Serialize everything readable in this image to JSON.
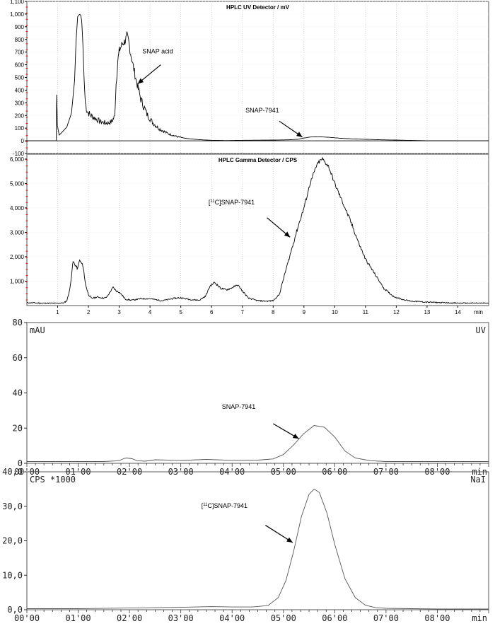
{
  "chart_data": [
    {
      "type": "line",
      "title": "HPLC UV Detector / mV",
      "xlim": [
        0,
        15
      ],
      "ylim": [
        -100,
        1100
      ],
      "x_ticks": [
        1,
        2,
        3,
        4,
        5,
        6,
        7,
        8,
        9,
        10,
        11,
        12,
        13,
        14
      ],
      "x_tick_labels": [],
      "y_ticks": [
        -100,
        0,
        100,
        200,
        300,
        400,
        500,
        600,
        700,
        800,
        900,
        1000,
        1100
      ],
      "y_tick_labels": [
        "-100",
        "0",
        "100",
        "200",
        "300",
        "400",
        "500",
        "600",
        "700",
        "800",
        "900",
        "1,000",
        "1,100"
      ],
      "x_unit": "",
      "grid": true,
      "series": [
        {
          "x": [
            0,
            0.95,
            0.97,
            0.99,
            1.05,
            1.15,
            1.3,
            1.45,
            1.55,
            1.6,
            1.65,
            1.7,
            1.72,
            1.75,
            1.78,
            1.82,
            1.86,
            1.9,
            1.95,
            2.05,
            2.2,
            2.4,
            2.6,
            2.75,
            2.85,
            2.9,
            2.95,
            3.0,
            3.1,
            3.2,
            3.25,
            3.3,
            3.4,
            3.55,
            3.7,
            3.9,
            4.1,
            4.3,
            4.6,
            4.9,
            5.2,
            5.6,
            6.0,
            6.5,
            7.0,
            7.5,
            8.0,
            8.5,
            8.8,
            9.0,
            9.2,
            9.5,
            9.8,
            10.2,
            10.6,
            11.0,
            11.5,
            12.0,
            12.5,
            13.0,
            14.0,
            15.0
          ],
          "y": [
            0,
            0,
            365,
            120,
            45,
            70,
            110,
            220,
            480,
            800,
            980,
            995,
            998,
            990,
            950,
            760,
            480,
            300,
            240,
            205,
            180,
            150,
            140,
            150,
            190,
            450,
            620,
            710,
            765,
            790,
            830,
            790,
            650,
            480,
            330,
            210,
            140,
            95,
            55,
            32,
            18,
            9,
            4,
            2,
            4,
            5,
            6,
            8,
            12,
            22,
            30,
            32,
            28,
            20,
            15,
            12,
            8,
            6,
            3,
            1,
            0,
            0
          ]
        }
      ],
      "annotations": [
        {
          "text": "SNAP acid"
        },
        {
          "text": "SNAP-7941"
        }
      ]
    },
    {
      "type": "line",
      "title": "HPLC Gamma Detector / CPS",
      "xlim": [
        0,
        15
      ],
      "ylim": [
        0,
        6200
      ],
      "x_ticks": [
        1,
        2,
        3,
        4,
        5,
        6,
        7,
        8,
        9,
        10,
        11,
        12,
        13,
        14
      ],
      "x_tick_labels": [
        "1",
        "2",
        "3",
        "4",
        "5",
        "6",
        "7",
        "8",
        "9",
        "10",
        "11",
        "12",
        "13",
        "14"
      ],
      "y_ticks": [
        1000,
        2000,
        3000,
        4000,
        5000,
        6000
      ],
      "y_tick_labels": [
        "1,000",
        "2,000",
        "3,000",
        "4,000",
        "5,000",
        "6,000"
      ],
      "x_unit": "min",
      "grid": true,
      "series": [
        {
          "x": [
            0,
            0.5,
            1.0,
            1.2,
            1.3,
            1.4,
            1.5,
            1.6,
            1.65,
            1.7,
            1.8,
            1.85,
            1.9,
            2.0,
            2.1,
            2.3,
            2.5,
            2.6,
            2.7,
            2.8,
            2.9,
            3.0,
            3.1,
            3.2,
            3.4,
            3.7,
            4.0,
            4.4,
            4.8,
            5.0,
            5.3,
            5.6,
            5.8,
            5.95,
            6.1,
            6.3,
            6.5,
            6.7,
            6.85,
            7.0,
            7.2,
            7.5,
            7.8,
            8.0,
            8.2,
            8.4,
            8.6,
            8.8,
            9.0,
            9.2,
            9.4,
            9.5,
            9.6,
            9.8,
            10.0,
            10.2,
            10.5,
            10.8,
            11.0,
            11.3,
            11.6,
            11.9,
            12.2,
            12.5,
            13.0,
            13.5,
            14.0,
            15.0
          ],
          "y": [
            120,
            100,
            95,
            110,
            200,
            700,
            1800,
            1600,
            1500,
            1850,
            1700,
            1400,
            900,
            450,
            300,
            350,
            300,
            350,
            550,
            750,
            600,
            550,
            420,
            260,
            220,
            280,
            280,
            200,
            300,
            320,
            250,
            220,
            380,
            800,
            950,
            700,
            650,
            750,
            850,
            600,
            300,
            200,
            180,
            200,
            450,
            1400,
            2300,
            3200,
            4000,
            5000,
            5700,
            5900,
            6000,
            5700,
            5000,
            4400,
            3500,
            2500,
            1900,
            1300,
            700,
            380,
            250,
            180,
            140,
            120,
            100,
            100
          ]
        }
      ],
      "annotations": [
        {
          "text": "[11C]SNAP-7941",
          "superscript": "11"
        }
      ]
    },
    {
      "type": "line",
      "title": "",
      "xlim": [
        0,
        9
      ],
      "ylim": [
        0,
        80
      ],
      "x_ticks": [
        0,
        1,
        2,
        3,
        4,
        5,
        6,
        7,
        8
      ],
      "x_tick_labels": [
        "00'00",
        "01'00",
        "02'00",
        "03'00",
        "04'00",
        "05'00",
        "06'00",
        "07'00",
        "08'00"
      ],
      "y_ticks": [
        0,
        20,
        40,
        60,
        80
      ],
      "y_tick_labels": [
        "0",
        "20",
        "40",
        "60",
        "80"
      ],
      "y_unit": "mAU",
      "detector": "UV",
      "x_unit": "min",
      "grid": false,
      "series": [
        {
          "x": [
            0,
            1.5,
            1.8,
            1.9,
            1.95,
            2.05,
            2.15,
            2.3,
            2.5,
            3.0,
            3.5,
            4.0,
            4.5,
            4.8,
            5.0,
            5.2,
            5.4,
            5.6,
            5.8,
            6.0,
            6.2,
            6.4,
            6.7,
            7.0,
            8.0,
            9.0
          ],
          "y": [
            1,
            1,
            1.5,
            2.8,
            3.0,
            2.6,
            1.5,
            1.2,
            2.0,
            1.6,
            2.2,
            1.7,
            1.8,
            2.5,
            5.0,
            10.5,
            17.0,
            21.5,
            20.5,
            15.0,
            7.0,
            3.0,
            1.5,
            1.0,
            1.0,
            1.0
          ]
        }
      ],
      "annotations": [
        {
          "text": "SNAP-7941"
        }
      ]
    },
    {
      "type": "line",
      "title": "",
      "xlim": [
        0,
        9
      ],
      "ylim": [
        0,
        40
      ],
      "x_ticks": [
        0,
        1,
        2,
        3,
        4,
        5,
        6,
        7,
        8
      ],
      "x_tick_labels": [
        "00'00",
        "01'00",
        "02'00",
        "03'00",
        "04'00",
        "05'00",
        "06'00",
        "07'00",
        "08'00"
      ],
      "y_ticks": [
        0,
        10,
        20,
        30,
        40
      ],
      "y_tick_labels": [
        "0,0",
        "10,0",
        "20,0",
        "30,0",
        "40,0"
      ],
      "y_unit": "CPS *1000",
      "detector": "NaI",
      "x_unit": "min",
      "grid": false,
      "series": [
        {
          "x": [
            0,
            1.0,
            2.0,
            3.0,
            3.6,
            4.0,
            4.4,
            4.7,
            4.9,
            5.05,
            5.2,
            5.35,
            5.5,
            5.6,
            5.7,
            5.85,
            6.0,
            6.2,
            6.4,
            6.6,
            6.8,
            7.0,
            7.5,
            8.0,
            9.0
          ],
          "y": [
            0.3,
            0.3,
            0.5,
            0.7,
            0.9,
            0.8,
            0.8,
            1.2,
            3.5,
            8.5,
            17.0,
            27.0,
            33.5,
            35.0,
            34.0,
            28.0,
            19.0,
            9.0,
            3.5,
            1.3,
            0.6,
            0.4,
            0.3,
            0.2,
            0.2
          ]
        }
      ],
      "annotations": [
        {
          "text": "[11C]SNAP-7941",
          "superscript": "11"
        }
      ]
    }
  ]
}
